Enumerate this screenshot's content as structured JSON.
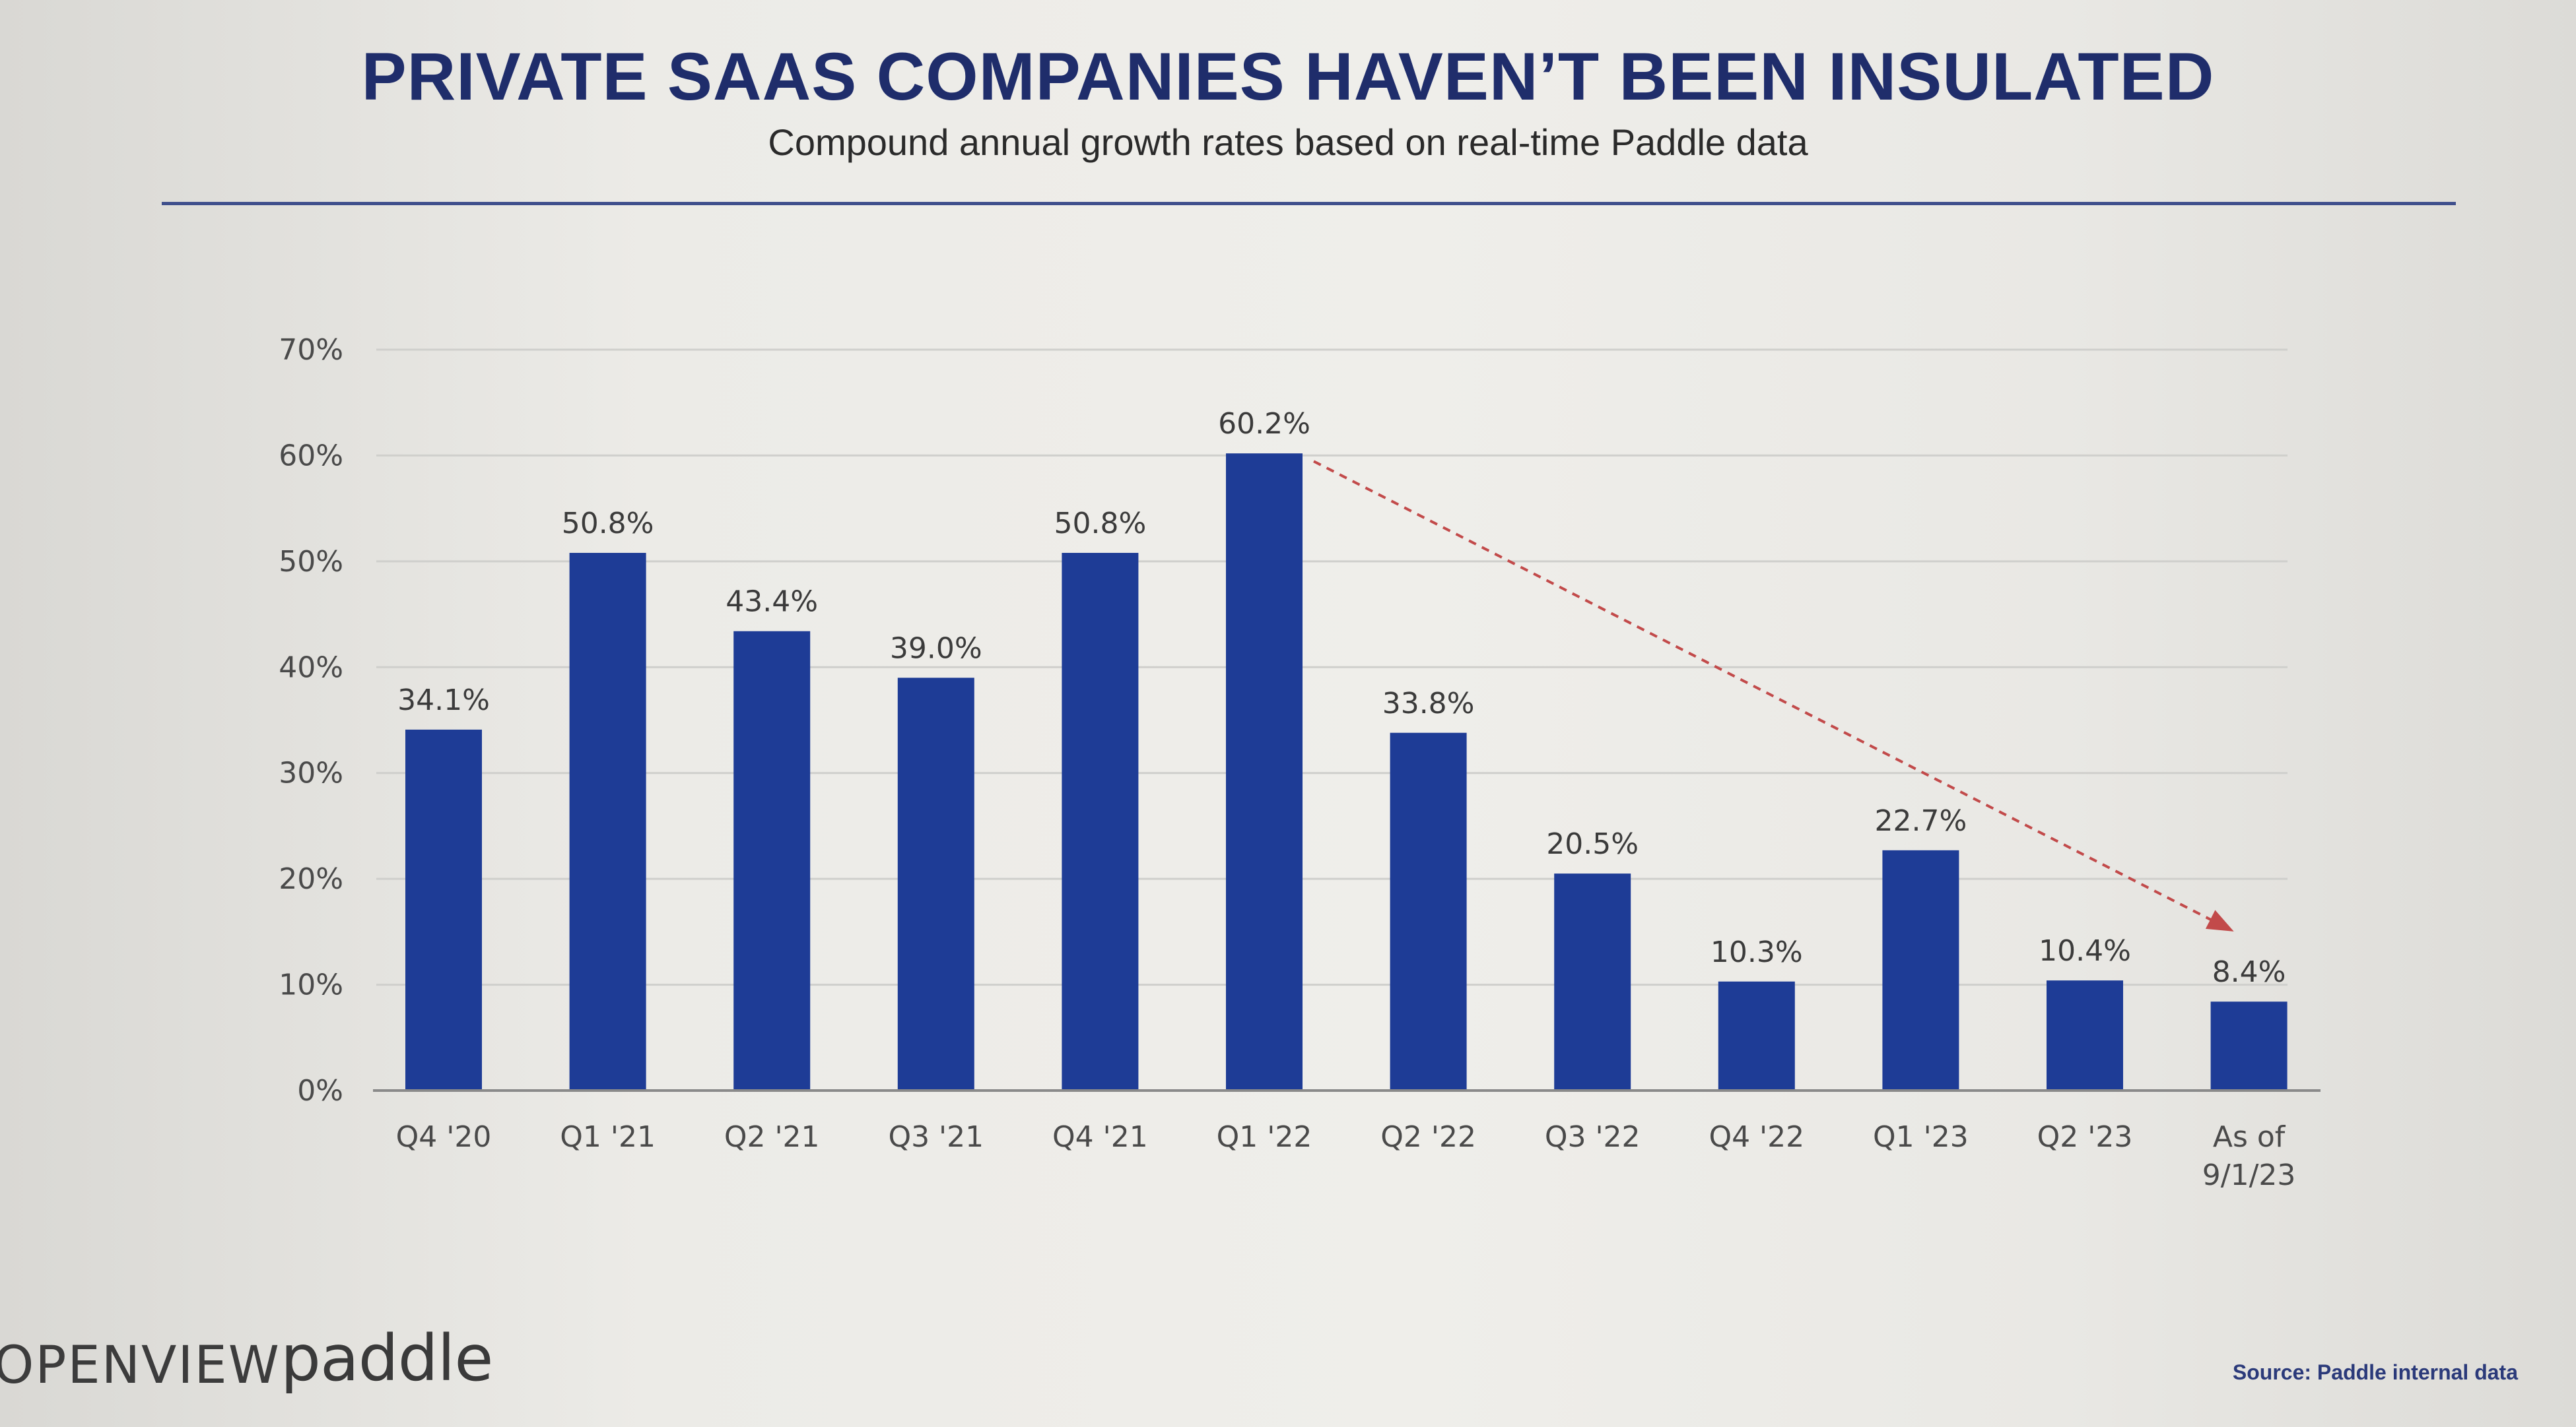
{
  "slide": {
    "title": "PRIVATE SAAS COMPANIES HAVEN’T BEEN INSULATED",
    "subtitle": "Compound annual growth rates based on real-time Paddle data",
    "source": "Source: Paddle internal data"
  },
  "logos": {
    "openview": "OPENVIEW",
    "paddle": "paddle"
  },
  "colors": {
    "bar": "#1e3c96",
    "title": "#1f2d6b",
    "trend_arrow": "#c24a4a",
    "gridline": "#cfcfcc",
    "axis": "#8a8a8a"
  },
  "chart_data": {
    "type": "bar",
    "title": "",
    "xlabel": "",
    "ylabel": "",
    "ylim": [
      0,
      70
    ],
    "yticks": [
      0,
      10,
      20,
      30,
      40,
      50,
      60,
      70
    ],
    "ytick_labels": [
      "0%",
      "10%",
      "20%",
      "30%",
      "40%",
      "50%",
      "60%",
      "70%"
    ],
    "grid": true,
    "categories": [
      [
        "Q4 '20"
      ],
      [
        "Q1 '21"
      ],
      [
        "Q2 '21"
      ],
      [
        "Q3 '21"
      ],
      [
        "Q4 '21"
      ],
      [
        "Q1 '22"
      ],
      [
        "Q2 '22"
      ],
      [
        "Q3 '22"
      ],
      [
        "Q4 '22"
      ],
      [
        "Q1 '23"
      ],
      [
        "Q2 '23"
      ],
      [
        "As of",
        "9/1/23"
      ]
    ],
    "values": [
      34.1,
      50.8,
      43.4,
      39.0,
      50.8,
      60.2,
      33.8,
      20.5,
      10.3,
      22.7,
      10.4,
      8.4
    ],
    "value_labels": [
      "34.1%",
      "50.8%",
      "43.4%",
      "39.0%",
      "50.8%",
      "60.2%",
      "33.8%",
      "20.5%",
      "10.3%",
      "22.7%",
      "10.4%",
      "8.4%"
    ],
    "annotations": [
      {
        "type": "trend-arrow",
        "from_index": 5,
        "to_index": 11,
        "style": "dashed"
      }
    ]
  }
}
